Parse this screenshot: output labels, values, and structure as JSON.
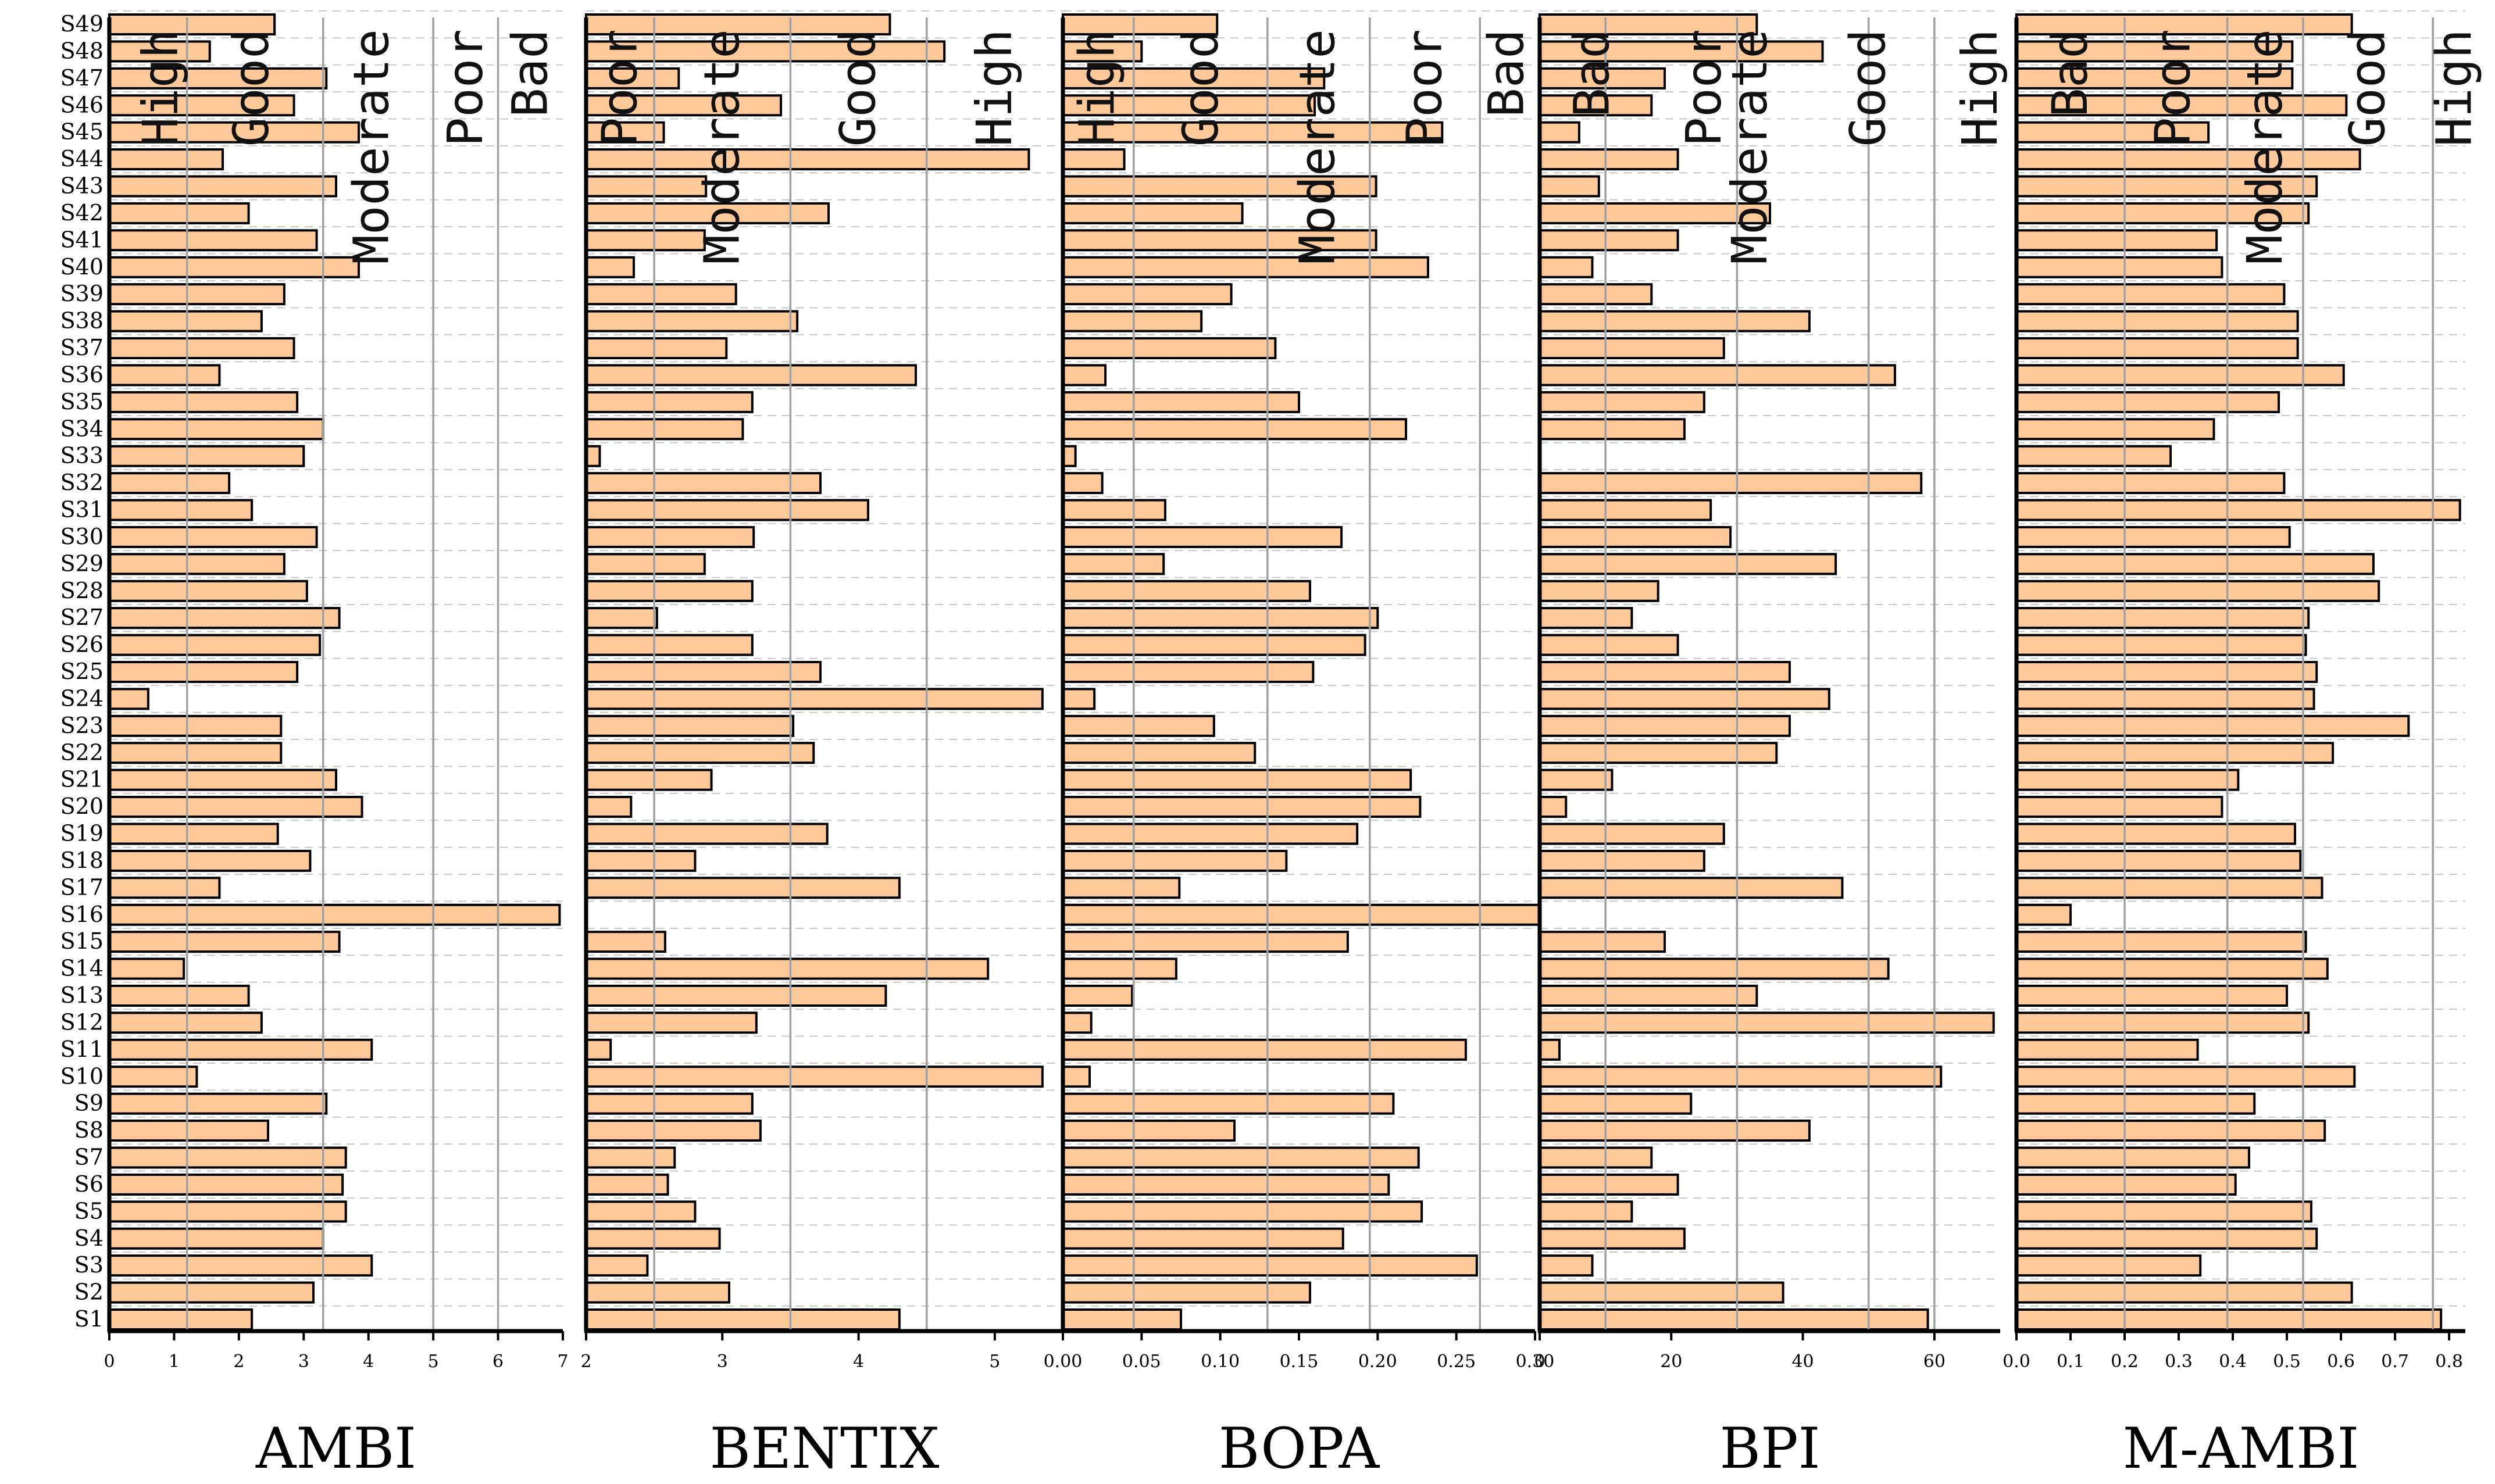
{
  "chart_data": {
    "type": "bar",
    "orientation": "horizontal",
    "categories": [
      "S1",
      "S2",
      "S3",
      "S4",
      "S5",
      "S6",
      "S7",
      "S8",
      "S9",
      "S10",
      "S11",
      "S12",
      "S13",
      "S14",
      "S15",
      "S16",
      "S17",
      "S18",
      "S19",
      "S20",
      "S21",
      "S22",
      "S23",
      "S24",
      "S25",
      "S26",
      "S27",
      "S28",
      "S29",
      "S30",
      "S31",
      "S32",
      "S33",
      "S34",
      "S35",
      "S36",
      "S37",
      "S38",
      "S39",
      "S40",
      "S41",
      "S42",
      "S43",
      "S44",
      "S45",
      "S46",
      "S47",
      "S48",
      "S49"
    ],
    "bar_color": "#FFC99A",
    "panels": [
      {
        "name": "AMBI",
        "xlim": [
          0,
          7
        ],
        "ticks": [
          0,
          1,
          2,
          3,
          4,
          5,
          6,
          7
        ],
        "tick_labels": [
          "0",
          "1",
          "2",
          "3",
          "4",
          "5",
          "6",
          "7"
        ],
        "band_thresholds": [
          1.2,
          3.3,
          5.0,
          6.0
        ],
        "band_labels": [
          "High",
          "Good",
          "Moderate",
          "Poor",
          "Bad"
        ],
        "band_label_anchor": [
          0.8,
          2.2,
          4.05,
          5.5,
          6.5
        ],
        "values": [
          2.2,
          3.15,
          4.05,
          3.3,
          3.65,
          3.6,
          3.65,
          2.45,
          3.35,
          1.35,
          4.05,
          2.35,
          2.15,
          1.15,
          3.55,
          6.95,
          1.7,
          3.1,
          2.6,
          3.9,
          3.5,
          2.65,
          2.65,
          0.6,
          2.9,
          3.25,
          3.55,
          3.05,
          2.7,
          3.2,
          2.2,
          1.85,
          3.0,
          3.3,
          2.9,
          1.7,
          2.85,
          2.35,
          2.7,
          3.85,
          3.2,
          2.15,
          3.5,
          1.75,
          3.85,
          2.85,
          3.35,
          1.55,
          2.55
        ]
      },
      {
        "name": "BENTIX",
        "xlim": [
          2,
          5.5
        ],
        "ticks": [
          2,
          3,
          4,
          5
        ],
        "tick_labels": [
          "2",
          "3",
          "4",
          "5"
        ],
        "band_thresholds": [
          2.5,
          3.5,
          4.5
        ],
        "band_labels": [
          "Poor",
          "Moderate",
          "Good",
          "High"
        ],
        "band_label_anchor": [
          2.25,
          3.0,
          4.0,
          5.0
        ],
        "values": [
          4.3,
          3.05,
          2.45,
          2.98,
          2.8,
          2.6,
          2.65,
          3.28,
          3.22,
          5.35,
          2.18,
          3.25,
          4.2,
          4.95,
          2.58,
          2.0,
          4.3,
          2.8,
          3.77,
          2.33,
          2.92,
          3.67,
          3.52,
          5.35,
          3.72,
          3.22,
          2.52,
          3.22,
          2.87,
          3.23,
          4.07,
          3.72,
          2.1,
          3.15,
          3.22,
          4.42,
          3.03,
          3.55,
          3.1,
          2.35,
          2.87,
          3.78,
          2.88,
          5.25,
          2.57,
          3.43,
          2.68,
          4.63,
          4.23
        ]
      },
      {
        "name": "BOPA",
        "xlim": [
          0,
          0.3
        ],
        "ticks": [
          0,
          0.05,
          0.1,
          0.15,
          0.2,
          0.25,
          0.3
        ],
        "tick_labels": [
          "0.00",
          "0.05",
          "0.10",
          "0.15",
          "0.20",
          "0.25",
          "0.30"
        ],
        "band_thresholds": [
          0.045,
          0.13,
          0.195,
          0.265
        ],
        "band_labels": [
          "High",
          "Good",
          "Moderate",
          "Poor",
          "Bad"
        ],
        "band_label_anchor": [
          0.022,
          0.088,
          0.162,
          0.23,
          0.282
        ],
        "values": [
          0.075,
          0.157,
          0.263,
          0.178,
          0.228,
          0.207,
          0.226,
          0.109,
          0.21,
          0.017,
          0.256,
          0.018,
          0.044,
          0.072,
          0.181,
          0.303,
          0.074,
          0.142,
          0.187,
          0.227,
          0.221,
          0.122,
          0.096,
          0.02,
          0.159,
          0.192,
          0.2,
          0.157,
          0.064,
          0.177,
          0.065,
          0.025,
          0.008,
          0.218,
          0.15,
          0.027,
          0.135,
          0.088,
          0.107,
          0.232,
          0.199,
          0.114,
          0.199,
          0.039,
          0.241,
          0.16,
          0.166,
          0.05,
          0.098
        ]
      },
      {
        "name": "BPI",
        "xlim": [
          0,
          70
        ],
        "ticks": [
          0,
          20,
          40,
          60
        ],
        "tick_labels": [
          "0",
          "20",
          "40",
          "60"
        ],
        "band_thresholds": [
          10,
          30,
          50,
          60
        ],
        "band_labels": [
          "Bad",
          "Poor",
          "Moderate",
          "Good",
          "High"
        ],
        "band_label_anchor": [
          8,
          25,
          32,
          50,
          67
        ],
        "values": [
          59,
          37,
          8,
          22,
          14,
          21,
          17,
          41,
          23,
          61,
          3,
          69,
          33,
          53,
          19,
          0,
          46,
          25,
          28,
          4,
          11,
          36,
          38,
          44,
          38,
          21,
          14,
          18,
          45,
          29,
          26,
          58,
          0,
          22,
          25,
          54,
          28,
          41,
          17,
          8,
          21,
          35,
          9,
          21,
          6,
          17,
          19,
          43,
          33
        ]
      },
      {
        "name": "M-AMBI",
        "xlim": [
          0,
          0.83
        ],
        "ticks": [
          0,
          0.1,
          0.2,
          0.3,
          0.4,
          0.5,
          0.6,
          0.7,
          0.8
        ],
        "tick_labels": [
          "0.0",
          "0.1",
          "0.2",
          "0.3",
          "0.4",
          "0.5",
          "0.6",
          "0.7",
          "0.8"
        ],
        "band_thresholds": [
          0.2,
          0.39,
          0.53,
          0.77
        ],
        "band_labels": [
          "Bad",
          "Poor",
          "Moderate",
          "Good",
          "High"
        ],
        "band_label_anchor": [
          0.1,
          0.29,
          0.46,
          0.65,
          0.81
        ],
        "values": [
          0.785,
          0.62,
          0.34,
          0.555,
          0.545,
          0.405,
          0.43,
          0.57,
          0.44,
          0.625,
          0.335,
          0.54,
          0.5,
          0.575,
          0.535,
          0.1,
          0.565,
          0.525,
          0.515,
          0.38,
          0.41,
          0.585,
          0.725,
          0.55,
          0.555,
          0.535,
          0.54,
          0.67,
          0.66,
          0.505,
          0.82,
          0.495,
          0.285,
          0.365,
          0.485,
          0.605,
          0.52,
          0.52,
          0.495,
          0.38,
          0.37,
          0.54,
          0.555,
          0.635,
          0.355,
          0.61,
          0.51,
          0.51,
          0.62
        ]
      }
    ]
  }
}
